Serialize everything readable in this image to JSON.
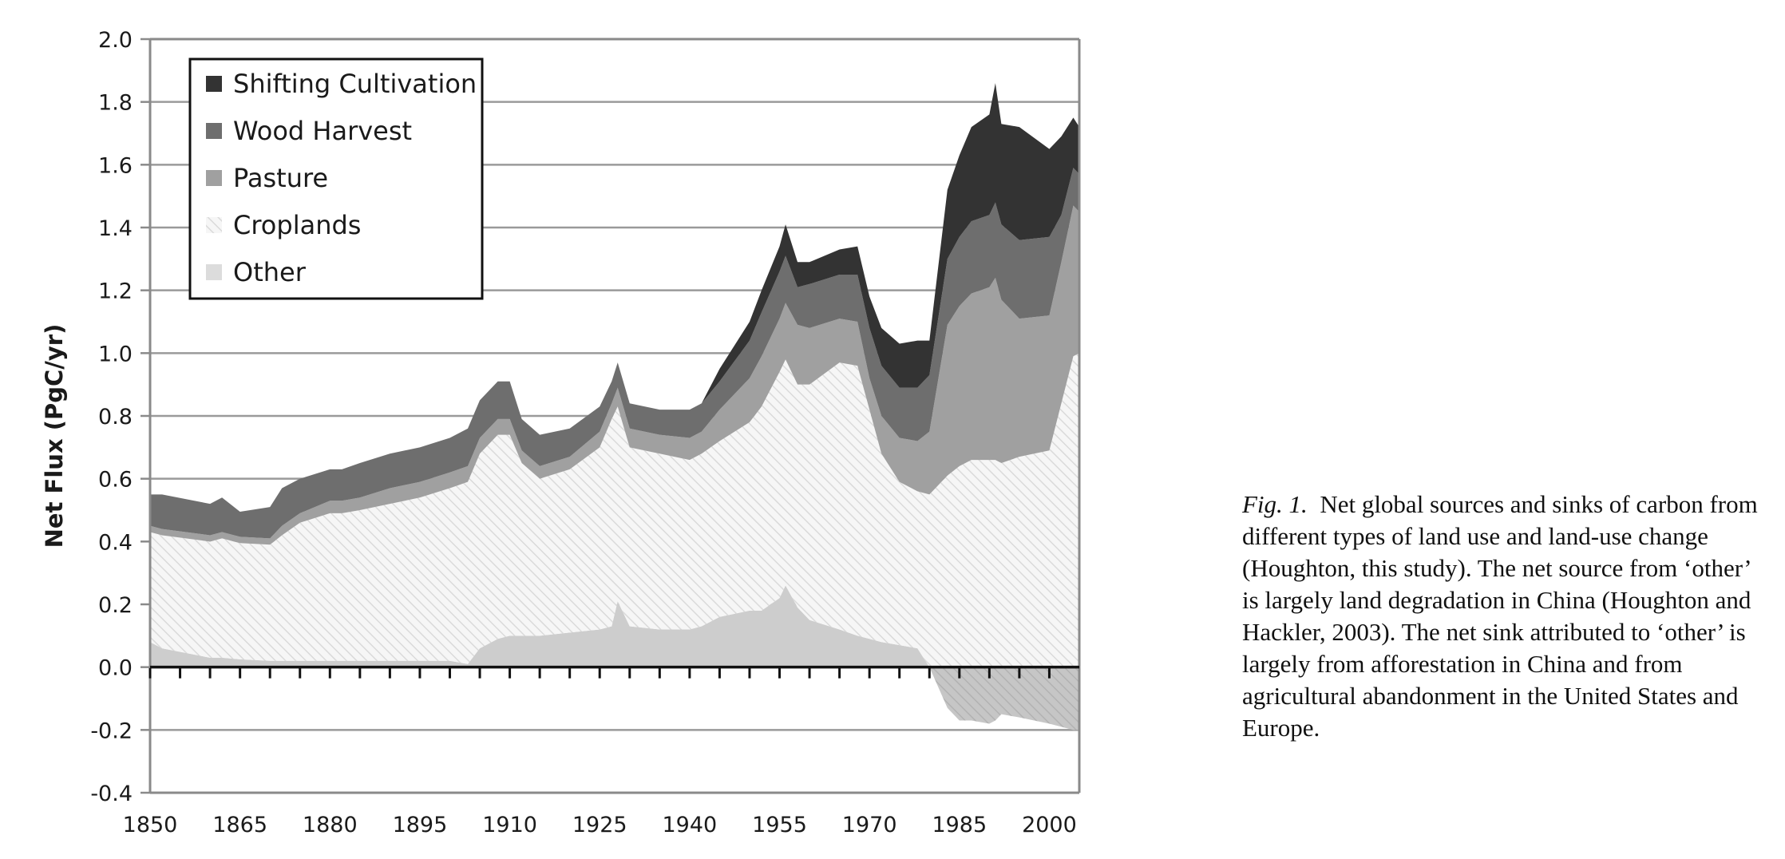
{
  "chart_data": {
    "type": "area",
    "stacked": true,
    "ylabel": "Net Flux  (PgC/yr)",
    "xlabel": "",
    "ylim": [
      -0.4,
      2.0
    ],
    "xlim": [
      1850,
      2005
    ],
    "x_ticks": [
      "1850",
      "1865",
      "1880",
      "1895",
      "1910",
      "1925",
      "1940",
      "1955",
      "1970",
      "1985",
      "2000"
    ],
    "y_ticks": [
      "2.0",
      "1.8",
      "1.6",
      "1.4",
      "1.2",
      "1.0",
      "0.8",
      "0.6",
      "0.4",
      "0.2",
      "0.0",
      "-0.2",
      "-0.4"
    ],
    "grid": true,
    "legend_position": "top-left",
    "x": [
      1850,
      1852,
      1860,
      1862,
      1865,
      1870,
      1872,
      1875,
      1880,
      1882,
      1885,
      1890,
      1895,
      1900,
      1903,
      1905,
      1908,
      1910,
      1912,
      1915,
      1920,
      1925,
      1927,
      1928,
      1930,
      1935,
      1940,
      1942,
      1945,
      1950,
      1952,
      1955,
      1956,
      1958,
      1960,
      1965,
      1968,
      1970,
      1972,
      1975,
      1978,
      1980,
      1983,
      1985,
      1987,
      1990,
      1991,
      1992,
      1995,
      2000,
      2002,
      2004,
      2005
    ],
    "series": [
      {
        "name": "Other",
        "color": "#cccccc",
        "values": [
          0.08,
          0.06,
          0.03,
          0.03,
          0.025,
          0.02,
          0.02,
          0.02,
          0.02,
          0.02,
          0.02,
          0.02,
          0.02,
          0.02,
          0.01,
          0.06,
          0.09,
          0.1,
          0.1,
          0.1,
          0.11,
          0.12,
          0.13,
          0.21,
          0.13,
          0.12,
          0.12,
          0.13,
          0.16,
          0.18,
          0.18,
          0.22,
          0.26,
          0.19,
          0.15,
          0.12,
          0.1,
          0.09,
          0.08,
          0.07,
          0.06,
          0.0,
          -0.13,
          -0.17,
          -0.17,
          -0.18,
          -0.17,
          -0.15,
          -0.16,
          -0.18,
          -0.19,
          -0.2,
          -0.2
        ]
      },
      {
        "name": "Croplands",
        "color": "#f2f2f2",
        "values": [
          0.35,
          0.36,
          0.37,
          0.38,
          0.37,
          0.37,
          0.4,
          0.44,
          0.47,
          0.47,
          0.48,
          0.5,
          0.52,
          0.55,
          0.58,
          0.62,
          0.65,
          0.64,
          0.55,
          0.5,
          0.52,
          0.58,
          0.66,
          0.62,
          0.57,
          0.56,
          0.54,
          0.55,
          0.56,
          0.6,
          0.65,
          0.72,
          0.72,
          0.71,
          0.75,
          0.85,
          0.86,
          0.73,
          0.6,
          0.52,
          0.5,
          0.55,
          0.61,
          0.64,
          0.66,
          0.66,
          0.66,
          0.65,
          0.67,
          0.69,
          0.84,
          0.99,
          1.0
        ]
      },
      {
        "name": "Pasture",
        "color": "#a0a0a0",
        "values": [
          0.02,
          0.02,
          0.02,
          0.02,
          0.02,
          0.02,
          0.03,
          0.03,
          0.04,
          0.04,
          0.04,
          0.05,
          0.05,
          0.05,
          0.05,
          0.05,
          0.05,
          0.05,
          0.04,
          0.04,
          0.04,
          0.05,
          0.05,
          0.06,
          0.06,
          0.06,
          0.07,
          0.07,
          0.1,
          0.14,
          0.16,
          0.17,
          0.18,
          0.19,
          0.18,
          0.14,
          0.14,
          0.1,
          0.12,
          0.14,
          0.16,
          0.2,
          0.48,
          0.51,
          0.53,
          0.55,
          0.58,
          0.52,
          0.44,
          0.43,
          0.45,
          0.48,
          0.45
        ]
      },
      {
        "name": "Wood Harvest",
        "color": "#6e6e6e",
        "values": [
          0.1,
          0.11,
          0.1,
          0.11,
          0.08,
          0.1,
          0.12,
          0.11,
          0.1,
          0.1,
          0.11,
          0.11,
          0.11,
          0.11,
          0.12,
          0.12,
          0.12,
          0.12,
          0.1,
          0.1,
          0.09,
          0.08,
          0.07,
          0.08,
          0.08,
          0.08,
          0.09,
          0.09,
          0.09,
          0.12,
          0.14,
          0.15,
          0.15,
          0.12,
          0.14,
          0.14,
          0.15,
          0.16,
          0.16,
          0.16,
          0.17,
          0.18,
          0.21,
          0.22,
          0.23,
          0.23,
          0.24,
          0.24,
          0.25,
          0.25,
          0.15,
          0.12,
          0.12
        ]
      },
      {
        "name": "Shifting Cultivation",
        "color": "#333333",
        "values": [
          0.0,
          0.0,
          0.0,
          0.0,
          0.0,
          0.0,
          0.0,
          0.0,
          0.0,
          0.0,
          0.0,
          0.0,
          0.0,
          0.0,
          0.0,
          0.0,
          0.0,
          0.0,
          0.0,
          0.0,
          0.0,
          0.0,
          0.0,
          0.0,
          0.0,
          0.0,
          0.0,
          0.0,
          0.04,
          0.06,
          0.07,
          0.08,
          0.1,
          0.08,
          0.07,
          0.08,
          0.09,
          0.1,
          0.12,
          0.14,
          0.15,
          0.11,
          0.22,
          0.26,
          0.3,
          0.32,
          0.38,
          0.32,
          0.36,
          0.28,
          0.25,
          0.16,
          0.15
        ]
      }
    ]
  },
  "legend": {
    "items": [
      {
        "label": "Shifting Cultivation",
        "color": "#333333"
      },
      {
        "label": "Wood Harvest",
        "color": "#6e6e6e"
      },
      {
        "label": "Pasture",
        "color": "#a0a0a0"
      },
      {
        "label": "Croplands",
        "color": "#f2f2f2"
      },
      {
        "label": "Other",
        "color": "#dcdcdc"
      }
    ]
  },
  "caption": {
    "fig_label": "Fig. 1.",
    "text": "Net global sources and sinks of carbon from different types of land use and land-use change (Houghton, this study). The net source from ‘other’ is largely land degradation in China (Houghton and Hackler, 2003). The net sink attributed to ‘other’ is largely from afforestation in China and from agricultural abandonment in the United States and Europe."
  }
}
